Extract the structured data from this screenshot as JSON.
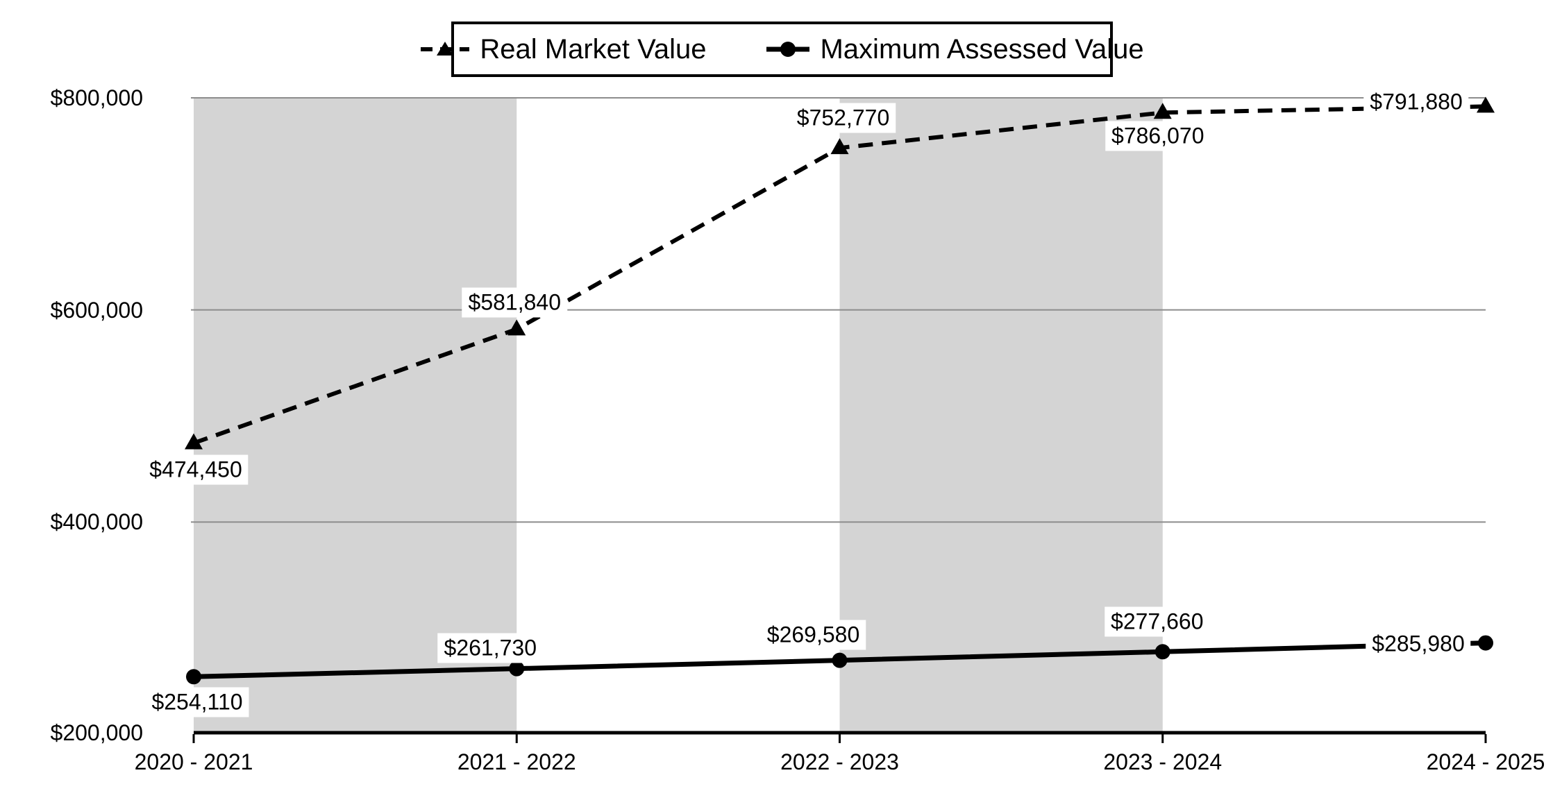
{
  "chart_data": {
    "type": "line",
    "title": "",
    "categories": [
      "2020 - 2021",
      "2021 - 2022",
      "2022 - 2023",
      "2023 - 2024",
      "2024 - 2025"
    ],
    "series": [
      {
        "name": "Real Market Value",
        "line_style": "dashed",
        "marker": "triangle",
        "color": "#000000",
        "values": [
          474450,
          581840,
          752770,
          786070,
          791880
        ],
        "point_labels": [
          "$474,450",
          "$581,840",
          "$752,770",
          "$786,070",
          "$791,880"
        ]
      },
      {
        "name": "Maximum Assessed Value",
        "line_style": "solid",
        "marker": "circle",
        "color": "#000000",
        "values": [
          254110,
          261730,
          269580,
          277660,
          285980
        ],
        "point_labels": [
          "$254,110",
          "$261,730",
          "$269,580",
          "$277,660",
          "$285,980"
        ]
      }
    ],
    "y_axis": {
      "min": 200000,
      "max": 800000,
      "step": 200000,
      "tick_labels": [
        "$800,000",
        "$600,000",
        "$400,000",
        "$200,000"
      ]
    },
    "x_axis": {
      "label": ""
    },
    "legend_position": "top",
    "grid": true,
    "shaded_band_pairs": [
      [
        0,
        1
      ],
      [
        2,
        3
      ]
    ],
    "styles": {
      "band_color": "#d4d4d4",
      "gridline_color": "#8c8c8c",
      "axis_color": "#000000",
      "background": "#ffffff",
      "label_background": "#ffffff"
    }
  }
}
